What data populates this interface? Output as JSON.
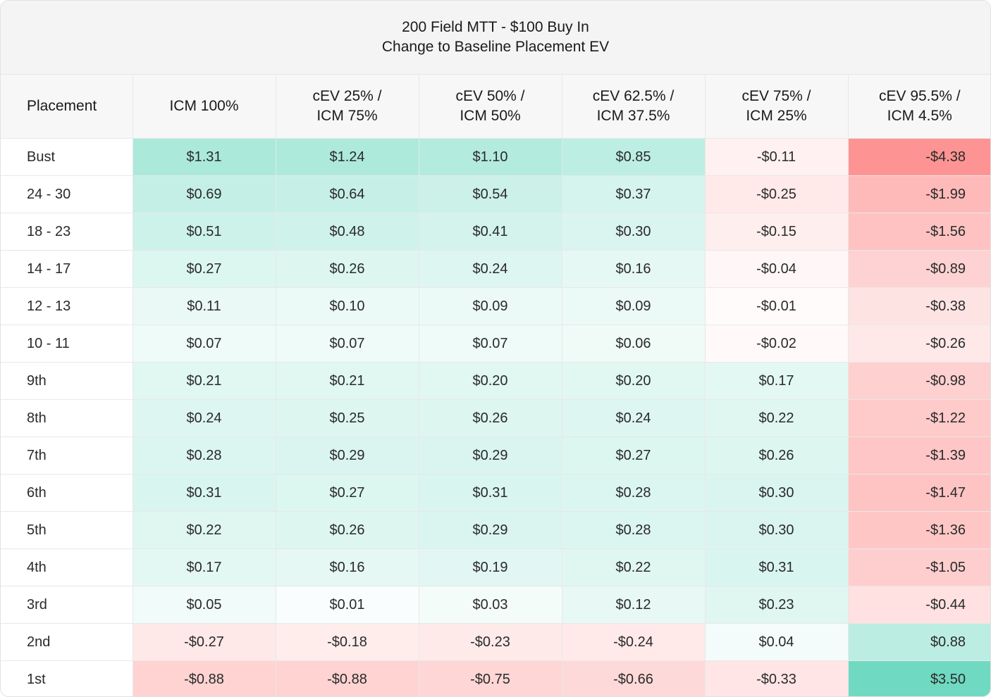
{
  "chart_data": {
    "type": "table",
    "title": "200 Field MTT - $100 Buy In",
    "subtitle": "Change to Baseline Placement EV",
    "columns": [
      "Placement",
      "ICM 100%",
      "cEV 25% /\nICM 75%",
      "cEV 50% /\nICM 50%",
      "cEV 62.5% /\nICM 37.5%",
      "cEV 75% /\nICM 25%",
      "cEV 95.5% /\nICM 4.5%"
    ],
    "rows": [
      {
        "label": "Bust",
        "cells": [
          "$1.31",
          "$1.24",
          "$1.10",
          "$0.85",
          "-$0.11",
          "-$4.38"
        ],
        "values": [
          1.31,
          1.24,
          1.1,
          0.85,
          -0.11,
          -4.38
        ]
      },
      {
        "label": "24 - 30",
        "cells": [
          "$0.69",
          "$0.64",
          "$0.54",
          "$0.37",
          "-$0.25",
          "-$1.99"
        ],
        "values": [
          0.69,
          0.64,
          0.54,
          0.37,
          -0.25,
          -1.99
        ]
      },
      {
        "label": "18 - 23",
        "cells": [
          "$0.51",
          "$0.48",
          "$0.41",
          "$0.30",
          "-$0.15",
          "-$1.56"
        ],
        "values": [
          0.51,
          0.48,
          0.41,
          0.3,
          -0.15,
          -1.56
        ]
      },
      {
        "label": "14 - 17",
        "cells": [
          "$0.27",
          "$0.26",
          "$0.24",
          "$0.16",
          "-$0.04",
          "-$0.89"
        ],
        "values": [
          0.27,
          0.26,
          0.24,
          0.16,
          -0.04,
          -0.89
        ]
      },
      {
        "label": "12 - 13",
        "cells": [
          "$0.11",
          "$0.10",
          "$0.09",
          "$0.09",
          "-$0.01",
          "-$0.38"
        ],
        "values": [
          0.11,
          0.1,
          0.09,
          0.09,
          -0.01,
          -0.38
        ]
      },
      {
        "label": "10 - 11",
        "cells": [
          "$0.07",
          "$0.07",
          "$0.07",
          "$0.06",
          "-$0.02",
          "-$0.26"
        ],
        "values": [
          0.07,
          0.07,
          0.07,
          0.06,
          -0.02,
          -0.26
        ]
      },
      {
        "label": "9th",
        "cells": [
          "$0.21",
          "$0.21",
          "$0.20",
          "$0.20",
          "$0.17",
          "-$0.98"
        ],
        "values": [
          0.21,
          0.21,
          0.2,
          0.2,
          0.17,
          -0.98
        ]
      },
      {
        "label": "8th",
        "cells": [
          "$0.24",
          "$0.25",
          "$0.26",
          "$0.24",
          "$0.22",
          "-$1.22"
        ],
        "values": [
          0.24,
          0.25,
          0.26,
          0.24,
          0.22,
          -1.22
        ]
      },
      {
        "label": "7th",
        "cells": [
          "$0.28",
          "$0.29",
          "$0.29",
          "$0.27",
          "$0.26",
          "-$1.39"
        ],
        "values": [
          0.28,
          0.29,
          0.29,
          0.27,
          0.26,
          -1.39
        ]
      },
      {
        "label": "6th",
        "cells": [
          "$0.31",
          "$0.27",
          "$0.31",
          "$0.28",
          "$0.30",
          "-$1.47"
        ],
        "values": [
          0.31,
          0.27,
          0.31,
          0.28,
          0.3,
          -1.47
        ]
      },
      {
        "label": "5th",
        "cells": [
          "$0.22",
          "$0.26",
          "$0.29",
          "$0.28",
          "$0.30",
          "-$1.36"
        ],
        "values": [
          0.22,
          0.26,
          0.29,
          0.28,
          0.3,
          -1.36
        ]
      },
      {
        "label": "4th",
        "cells": [
          "$0.17",
          "$0.16",
          "$0.19",
          "$0.22",
          "$0.31",
          "-$1.05"
        ],
        "values": [
          0.17,
          0.16,
          0.19,
          0.22,
          0.31,
          -1.05
        ]
      },
      {
        "label": "3rd",
        "cells": [
          "$0.05",
          "$0.01",
          "$0.03",
          "$0.12",
          "$0.23",
          "-$0.44"
        ],
        "values": [
          0.05,
          0.01,
          0.03,
          0.12,
          0.23,
          -0.44
        ]
      },
      {
        "label": "2nd",
        "cells": [
          "-$0.27",
          "-$0.18",
          "-$0.23",
          "-$0.24",
          "$0.04",
          "$0.88"
        ],
        "values": [
          -0.27,
          -0.18,
          -0.23,
          -0.24,
          0.04,
          0.88
        ]
      },
      {
        "label": "1st",
        "cells": [
          "-$0.88",
          "-$0.88",
          "-$0.75",
          "-$0.66",
          "-$0.33",
          "$3.50"
        ],
        "values": [
          -0.88,
          -0.88,
          -0.75,
          -0.66,
          -0.33,
          3.5
        ]
      }
    ],
    "colors": {
      "positive": "#6fd9c1",
      "negative": "#fd9493",
      "neutral": "#ffffff"
    }
  }
}
